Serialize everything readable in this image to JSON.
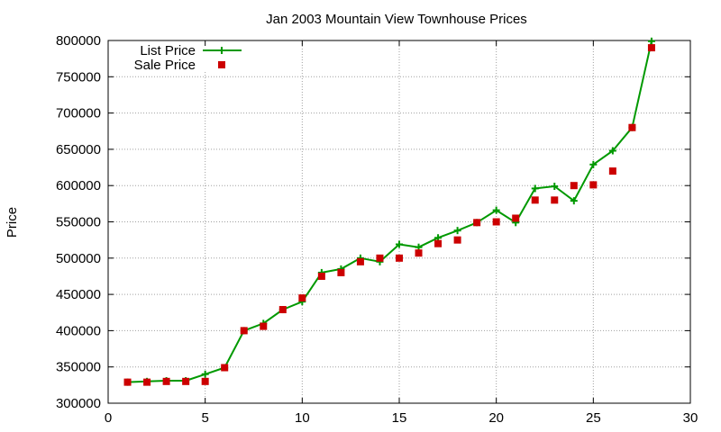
{
  "chart_data": {
    "type": "line",
    "title": "Jan 2003 Mountain View Townhouse Prices",
    "xlabel": "",
    "ylabel": "Price",
    "xlim": [
      0,
      30
    ],
    "ylim": [
      300000,
      800000
    ],
    "x_ticks": [
      0,
      5,
      10,
      15,
      20,
      25,
      30
    ],
    "y_ticks": [
      300000,
      350000,
      400000,
      450000,
      500000,
      550000,
      600000,
      650000,
      700000,
      750000,
      800000
    ],
    "x_tick_labels": [
      "0",
      "5",
      "10",
      "15",
      "20",
      "25",
      "30"
    ],
    "y_tick_labels": [
      "300000",
      "350000",
      "400000",
      "450000",
      "500000",
      "550000",
      "600000",
      "650000",
      "700000",
      "750000",
      "800000"
    ],
    "grid": true,
    "legend_position": "top-left",
    "series": [
      {
        "name": "List Price",
        "style": "linespoints",
        "color": "#009900",
        "x": [
          1,
          2,
          3,
          4,
          5,
          6,
          7,
          8,
          9,
          10,
          11,
          12,
          13,
          14,
          15,
          16,
          17,
          18,
          19,
          20,
          21,
          22,
          23,
          24,
          25,
          26,
          27,
          28
        ],
        "y": [
          329000,
          330000,
          331000,
          331000,
          340000,
          349000,
          400000,
          410000,
          429000,
          440000,
          480000,
          485000,
          500000,
          495000,
          519000,
          515000,
          528000,
          538000,
          549000,
          566000,
          549000,
          596000,
          599000,
          579000,
          629000,
          648000,
          680000,
          799000
        ]
      },
      {
        "name": "Sale Price",
        "style": "points",
        "color": "#cc0000",
        "x": [
          1,
          2,
          3,
          4,
          5,
          6,
          7,
          8,
          9,
          10,
          11,
          12,
          13,
          14,
          15,
          16,
          17,
          18,
          19,
          20,
          21,
          22,
          23,
          24,
          25,
          26,
          27,
          28
        ],
        "y": [
          329000,
          329000,
          330000,
          330000,
          330000,
          349000,
          400000,
          406000,
          429000,
          445000,
          475000,
          480000,
          495000,
          500000,
          500000,
          507000,
          520000,
          525000,
          549000,
          550000,
          555000,
          580000,
          580000,
          600000,
          601000,
          620000,
          680000,
          790000
        ]
      }
    ]
  },
  "colors": {
    "grid": "#a0a0a0",
    "axis": "#000000",
    "background": "#ffffff"
  }
}
